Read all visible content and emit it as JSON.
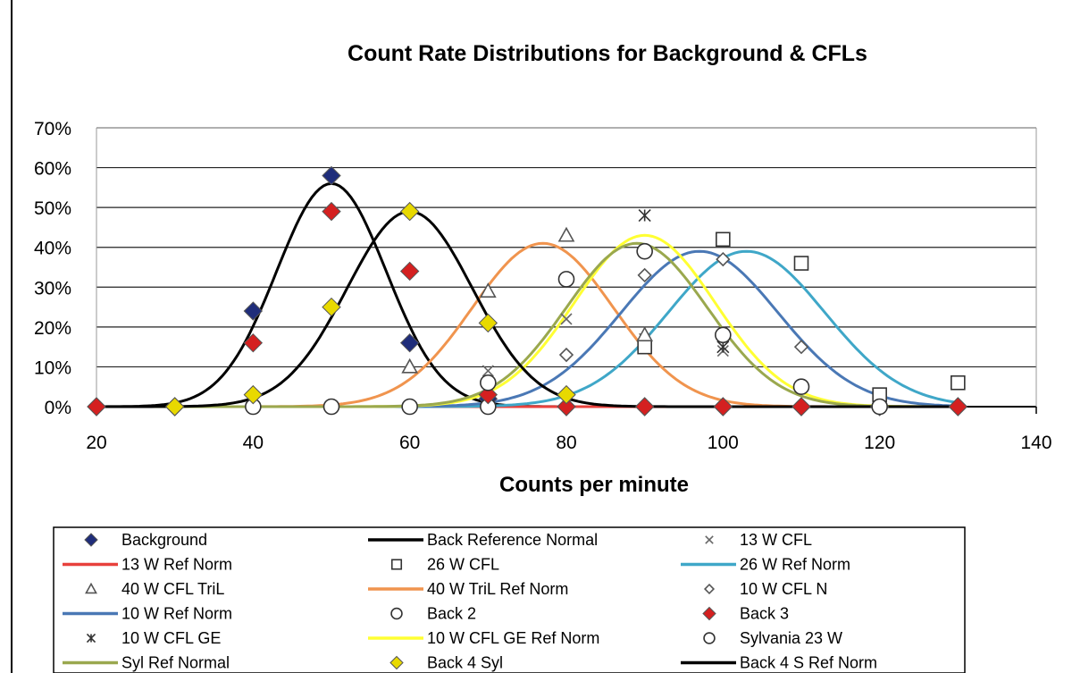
{
  "chart_data": {
    "type": "scatter",
    "title": "Count Rate Distributions for Background & CFLs",
    "xlabel": "Counts per minute",
    "ylabel": "",
    "xlim": [
      20,
      140
    ],
    "ylim": [
      0,
      0.7
    ],
    "x_ticks": [
      20,
      40,
      60,
      80,
      100,
      120,
      140
    ],
    "y_ticks": [
      0,
      0.1,
      0.2,
      0.3,
      0.4,
      0.5,
      0.6,
      0.7
    ],
    "y_format": "percent",
    "grid": "horizontal",
    "legend_position": "bottom",
    "series": [
      {
        "name": "Background",
        "kind": "points",
        "marker": "diamond-filled",
        "color": "#1f2d7a",
        "x": [
          20,
          30,
          40,
          50,
          60,
          70,
          80,
          90,
          100,
          110,
          120,
          130
        ],
        "y": [
          0,
          0,
          0.24,
          0.58,
          0.16,
          0.02,
          0,
          0,
          0,
          0,
          0,
          0
        ]
      },
      {
        "name": "Back Reference Normal",
        "kind": "curve",
        "color": "#000000",
        "mean": 50,
        "sd": 7,
        "peak": 0.56
      },
      {
        "name": "13 W CFL",
        "kind": "points",
        "marker": "x",
        "color": "#666666",
        "x": [
          70,
          80,
          90,
          100
        ],
        "y": [
          0.09,
          0.22,
          0.17,
          0.14
        ]
      },
      {
        "name": "13 W Ref Norm",
        "kind": "curve",
        "color": "#e8413c",
        "mean": 88,
        "sd": 9,
        "peak": 0.0
      },
      {
        "name": "26 W CFL",
        "kind": "points",
        "marker": "square-open",
        "color": "#333333",
        "x": [
          90,
          100,
          110,
          120,
          130
        ],
        "y": [
          0.15,
          0.42,
          0.36,
          0.03,
          0.06
        ]
      },
      {
        "name": "26 W Ref Norm",
        "kind": "curve",
        "color": "#3fa7c8",
        "mean": 103,
        "sd": 10,
        "peak": 0.39
      },
      {
        "name": "40 W CFL TriL",
        "kind": "points",
        "marker": "triangle-open",
        "color": "#555555",
        "x": [
          60,
          70,
          80,
          90
        ],
        "y": [
          0.1,
          0.29,
          0.43,
          0.18
        ]
      },
      {
        "name": "40 W TriL Ref Norm",
        "kind": "curve",
        "color": "#f0944e",
        "mean": 77,
        "sd": 9,
        "peak": 0.41
      },
      {
        "name": "10 W CFL N",
        "kind": "points",
        "marker": "diamond-open",
        "color": "#555555",
        "x": [
          80,
          90,
          100,
          110
        ],
        "y": [
          0.13,
          0.33,
          0.37,
          0.15
        ]
      },
      {
        "name": "10 W Ref Norm",
        "kind": "curve",
        "color": "#4a78b5",
        "mean": 97,
        "sd": 10,
        "peak": 0.39
      },
      {
        "name": "Back 2",
        "kind": "points",
        "marker": "circle-open",
        "color": "#333333",
        "x": [
          40,
          50,
          60,
          70
        ],
        "y": [
          0,
          0,
          0,
          0
        ]
      },
      {
        "name": "Back 3",
        "kind": "points",
        "marker": "diamond-filled",
        "color": "#d42020",
        "x": [
          20,
          30,
          40,
          50,
          60,
          70,
          80,
          90,
          100,
          110,
          130
        ],
        "y": [
          0,
          0,
          0.16,
          0.49,
          0.34,
          0.03,
          0,
          0,
          0,
          0,
          0
        ]
      },
      {
        "name": "10 W CFL GE",
        "kind": "points",
        "marker": "asterisk",
        "color": "#333333",
        "x": [
          90,
          100
        ],
        "y": [
          0.48,
          0.15
        ]
      },
      {
        "name": "10 W CFL GE Ref Norm",
        "kind": "curve",
        "color": "#ffff33",
        "mean": 90,
        "sd": 9,
        "peak": 0.43
      },
      {
        "name": "Sylvania 23 W",
        "kind": "points",
        "marker": "circle-open",
        "color": "#333333",
        "x": [
          70,
          80,
          90,
          100,
          110,
          120
        ],
        "y": [
          0.06,
          0.32,
          0.39,
          0.18,
          0.05,
          0
        ]
      },
      {
        "name": "Syl Ref Normal",
        "kind": "curve",
        "color": "#9aa84e",
        "mean": 89,
        "sd": 9,
        "peak": 0.41
      },
      {
        "name": "Back 4 Syl",
        "kind": "points",
        "marker": "diamond-filled",
        "color": "#e8d900",
        "x": [
          30,
          40,
          50,
          60,
          70,
          80
        ],
        "y": [
          0,
          0.03,
          0.25,
          0.49,
          0.21,
          0.03
        ]
      },
      {
        "name": "Back 4 S Ref Norm",
        "kind": "curve",
        "color": "#000000",
        "mean": 60,
        "sd": 8,
        "peak": 0.49
      }
    ]
  }
}
